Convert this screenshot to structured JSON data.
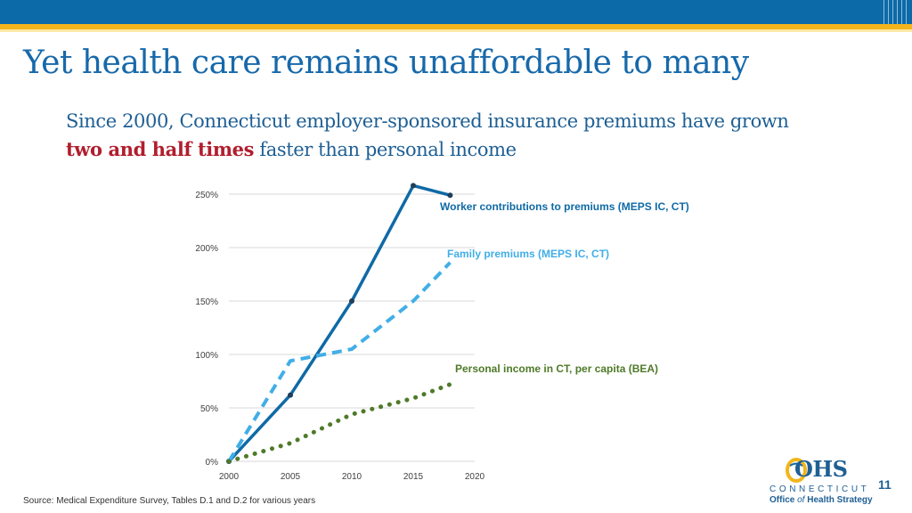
{
  "slide": {
    "title": "Yet health care remains unaffordable to many",
    "subtitle_part1": "Since 2000, Connecticut employer-sponsored insurance premiums have grown ",
    "subtitle_emphasis": "two and half times",
    "subtitle_part2": " faster than personal income",
    "source": "Source: Medical Expenditure Survey, Tables D.1 and D.2 for various years",
    "page_number": "11",
    "logo": {
      "letters": "OHS",
      "state": "CONNECTICUT",
      "name_part1": "Office ",
      "name_of": "of",
      "name_part2": " Health Strategy"
    }
  },
  "colors": {
    "brand_blue": "#0d6aa8",
    "accent_gold": "#f2b51c",
    "emphasis_red": "#b11e2d",
    "series_worker": "#0f6aa6",
    "series_family": "#41aee7",
    "series_income": "#4f7a28"
  },
  "chart_data": {
    "type": "line",
    "title": "",
    "xlabel": "",
    "ylabel": "",
    "xlim": [
      2000,
      2020
    ],
    "ylim": [
      0,
      250
    ],
    "xticks": [
      "2000",
      "2005",
      "2010",
      "2015",
      "2020"
    ],
    "yticks": [
      "0%",
      "50%",
      "100%",
      "150%",
      "200%",
      "250%"
    ],
    "grid": true,
    "legend": "direct labels at line ends",
    "series": [
      {
        "name": "Worker contributions to premiums (MEPS IC, CT)",
        "style": "solid",
        "x": [
          2000,
          2005,
          2010,
          2015,
          2018
        ],
        "values": [
          0,
          62,
          150,
          258,
          249
        ]
      },
      {
        "name": "Family premiums (MEPS IC, CT)",
        "style": "dashed",
        "x": [
          2000,
          2005,
          2010,
          2015,
          2018
        ],
        "values": [
          0,
          94,
          105,
          150,
          186
        ]
      },
      {
        "name": "Personal income in CT, per capita (BEA)",
        "style": "dotted",
        "x": [
          2000,
          2005,
          2010,
          2015,
          2018
        ],
        "values": [
          0,
          17,
          44,
          59,
          72
        ]
      }
    ]
  }
}
